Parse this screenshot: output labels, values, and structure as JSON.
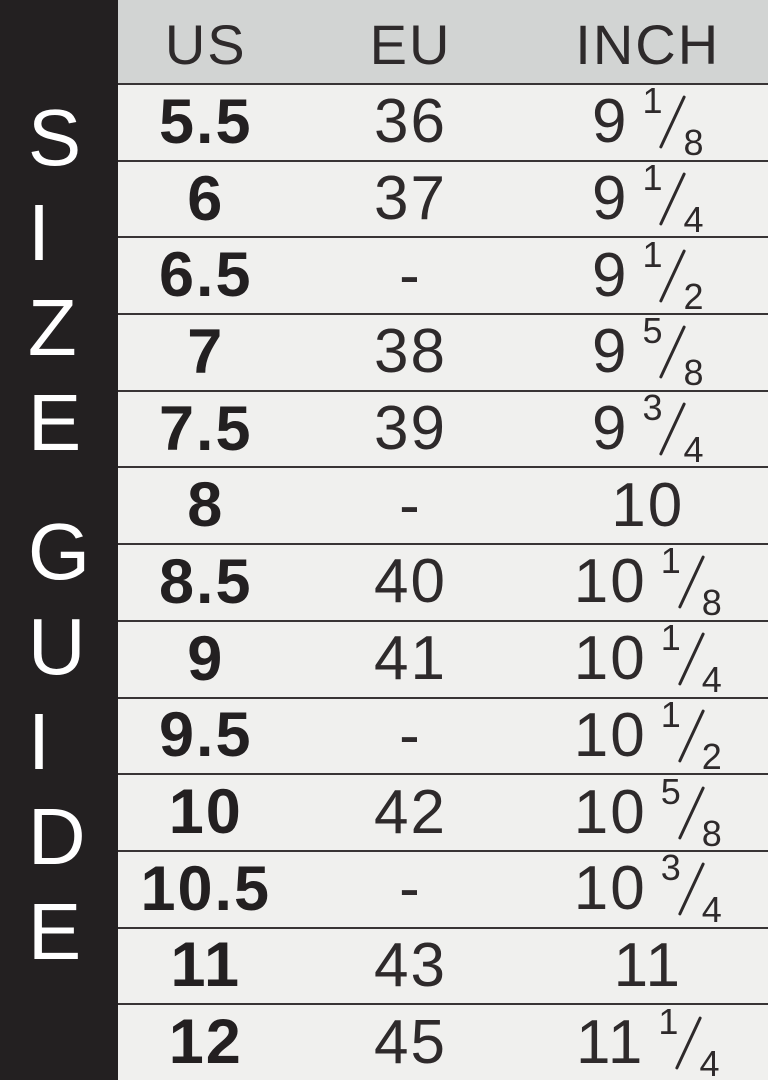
{
  "sidebar": {
    "title": "SIZE GUIDE",
    "bg_color": "#232021",
    "text_color": "#ffffff"
  },
  "table": {
    "headers": [
      "US",
      "EU",
      "INCH"
    ],
    "header_bg_color": "#d2d4d3",
    "row_bg_color": "#f0f0ee",
    "separator_color": "#383435",
    "text_color": "#2e2a2b",
    "rows": [
      {
        "us": "5.5",
        "eu": "36",
        "inch": {
          "whole": "9",
          "num": "1",
          "den": "8"
        }
      },
      {
        "us": "6",
        "eu": "37",
        "inch": {
          "whole": "9",
          "num": "1",
          "den": "4"
        }
      },
      {
        "us": "6.5",
        "eu": "-",
        "inch": {
          "whole": "9",
          "num": "1",
          "den": "2"
        }
      },
      {
        "us": "7",
        "eu": "38",
        "inch": {
          "whole": "9",
          "num": "5",
          "den": "8"
        }
      },
      {
        "us": "7.5",
        "eu": "39",
        "inch": {
          "whole": "9",
          "num": "3",
          "den": "4"
        }
      },
      {
        "us": "8",
        "eu": "-",
        "inch": {
          "whole": "10",
          "num": "",
          "den": ""
        }
      },
      {
        "us": "8.5",
        "eu": "40",
        "inch": {
          "whole": "10",
          "num": "1",
          "den": "8"
        }
      },
      {
        "us": "9",
        "eu": "41",
        "inch": {
          "whole": "10",
          "num": "1",
          "den": "4"
        }
      },
      {
        "us": "9.5",
        "eu": "-",
        "inch": {
          "whole": "10",
          "num": "1",
          "den": "2"
        }
      },
      {
        "us": "10",
        "eu": "42",
        "inch": {
          "whole": "10",
          "num": "5",
          "den": "8"
        }
      },
      {
        "us": "10.5",
        "eu": "-",
        "inch": {
          "whole": "10",
          "num": "3",
          "den": "4"
        }
      },
      {
        "us": "11",
        "eu": "43",
        "inch": {
          "whole": "11",
          "num": "",
          "den": ""
        }
      },
      {
        "us": "12",
        "eu": "45",
        "inch": {
          "whole": "11",
          "num": "1",
          "den": "4"
        }
      }
    ]
  },
  "chart_data": {
    "type": "table",
    "title": "SIZE GUIDE",
    "columns": [
      "US",
      "EU",
      "INCH"
    ],
    "rows": [
      [
        "5.5",
        "36",
        "9 1/8"
      ],
      [
        "6",
        "37",
        "9 1/4"
      ],
      [
        "6.5",
        "-",
        "9 1/2"
      ],
      [
        "7",
        "38",
        "9 5/8"
      ],
      [
        "7.5",
        "39",
        "9 3/4"
      ],
      [
        "8",
        "-",
        "10"
      ],
      [
        "8.5",
        "40",
        "10 1/8"
      ],
      [
        "9",
        "41",
        "10 1/4"
      ],
      [
        "9.5",
        "-",
        "10 1/2"
      ],
      [
        "10",
        "42",
        "10 5/8"
      ],
      [
        "10.5",
        "-",
        "10 3/4"
      ],
      [
        "11",
        "43",
        "11"
      ],
      [
        "12",
        "45",
        "11 1/4"
      ]
    ]
  }
}
